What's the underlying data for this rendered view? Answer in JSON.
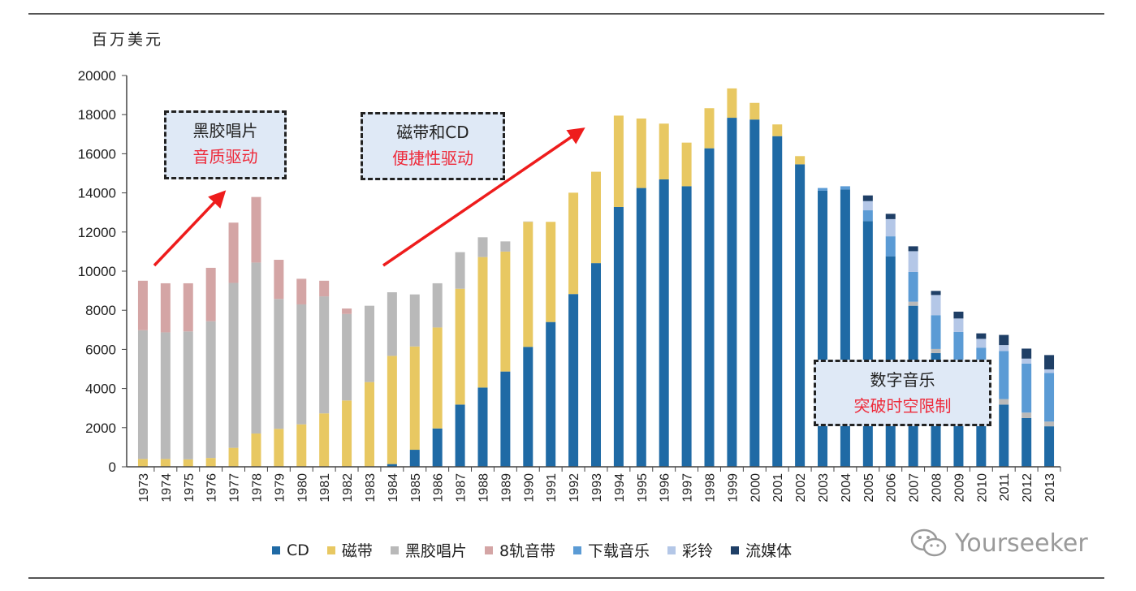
{
  "chart_data": {
    "type": "bar",
    "stacked": true,
    "ylabel": "百万美元",
    "ylim": [
      0,
      20000
    ],
    "yticks": [
      0,
      2000,
      4000,
      6000,
      8000,
      10000,
      12000,
      14000,
      16000,
      18000,
      20000
    ],
    "grid": false,
    "legend_position": "bottom",
    "categories": [
      "1973",
      "1974",
      "1975",
      "1976",
      "1977",
      "1978",
      "1979",
      "1980",
      "1981",
      "1982",
      "1983",
      "1984",
      "1985",
      "1986",
      "1987",
      "1988",
      "1989",
      "1990",
      "1991",
      "1992",
      "1993",
      "1994",
      "1995",
      "1996",
      "1997",
      "1998",
      "1999",
      "2000",
      "2001",
      "2002",
      "2003",
      "2004",
      "2005",
      "2006",
      "2007",
      "2008",
      "2009",
      "2010",
      "2011",
      "2012",
      "2013"
    ],
    "series": [
      {
        "name": "CD",
        "color": "#1f6aa5",
        "values": [
          0,
          0,
          0,
          0,
          0,
          0,
          0,
          0,
          0,
          0,
          0,
          140,
          870,
          1960,
          3180,
          4050,
          4870,
          6130,
          7400,
          8830,
          10410,
          13280,
          14250,
          14690,
          14340,
          16280,
          17840,
          17750,
          16900,
          15460,
          14110,
          14180,
          12560,
          10760,
          8230,
          5810,
          4270,
          3390,
          3180,
          2490,
          2070
        ]
      },
      {
        "name": "磁带",
        "color": "#e8c862",
        "values": [
          400,
          400,
          380,
          450,
          970,
          1700,
          1940,
          2170,
          2730,
          3390,
          4330,
          5530,
          5280,
          5160,
          5920,
          6670,
          6130,
          6390,
          5120,
          5180,
          4670,
          4670,
          3550,
          2850,
          2230,
          2050,
          1500,
          850,
          600,
          420,
          0,
          0,
          0,
          0,
          0,
          0,
          0,
          0,
          0,
          0,
          0
        ]
      },
      {
        "name": "黑胶唱片",
        "color": "#b9b9b9",
        "values": [
          6580,
          6470,
          6540,
          6990,
          8430,
          8740,
          6640,
          6130,
          5980,
          4420,
          3900,
          3250,
          2660,
          2260,
          1870,
          1010,
          520,
          20,
          0,
          0,
          0,
          0,
          0,
          0,
          0,
          0,
          0,
          0,
          0,
          0,
          0,
          0,
          0,
          0,
          210,
          210,
          190,
          210,
          280,
          280,
          240
        ]
      },
      {
        "name": "8轨音带",
        "color": "#d4a5a5",
        "values": [
          2530,
          2510,
          2460,
          2730,
          3080,
          3350,
          2000,
          1310,
          800,
          280,
          0,
          0,
          0,
          0,
          0,
          0,
          0,
          0,
          0,
          0,
          0,
          0,
          0,
          0,
          0,
          0,
          0,
          0,
          0,
          0,
          0,
          0,
          0,
          0,
          0,
          0,
          0,
          0,
          0,
          0,
          0
        ]
      },
      {
        "name": "下载音乐",
        "color": "#5b9bd5",
        "values": [
          0,
          0,
          0,
          0,
          0,
          0,
          0,
          0,
          0,
          0,
          0,
          0,
          0,
          0,
          0,
          0,
          0,
          0,
          0,
          0,
          0,
          0,
          0,
          0,
          0,
          0,
          0,
          0,
          0,
          0,
          140,
          160,
          550,
          1020,
          1520,
          1730,
          2430,
          2490,
          2460,
          2510,
          2490
        ]
      },
      {
        "name": "彩铃",
        "color": "#b4c7e7",
        "values": [
          0,
          0,
          0,
          0,
          0,
          0,
          0,
          0,
          0,
          0,
          0,
          0,
          0,
          0,
          0,
          0,
          0,
          0,
          0,
          0,
          0,
          0,
          0,
          0,
          0,
          0,
          0,
          0,
          0,
          0,
          0,
          0,
          470,
          880,
          1060,
          1030,
          690,
          450,
          300,
          250,
          180
        ]
      },
      {
        "name": "流媒体",
        "color": "#1f3f66",
        "values": [
          0,
          0,
          0,
          0,
          0,
          0,
          0,
          0,
          0,
          0,
          0,
          0,
          0,
          0,
          0,
          0,
          0,
          0,
          0,
          0,
          0,
          0,
          0,
          0,
          0,
          0,
          0,
          0,
          0,
          0,
          0,
          0,
          290,
          270,
          250,
          210,
          350,
          280,
          520,
          510,
          730
        ]
      }
    ],
    "annotations": [
      {
        "line1": "黑胶唱片",
        "line2": "音质驱动"
      },
      {
        "line1": "磁带和CD",
        "line2": "便捷性驱动"
      },
      {
        "line1": "数字音乐",
        "line2": "突破时空限制"
      }
    ]
  },
  "watermark": "Yourseeker"
}
